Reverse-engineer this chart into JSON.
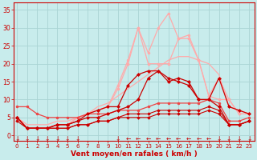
{
  "xlabel": "Vent moyen/en rafales ( km/h )",
  "background_color": "#c8ecec",
  "grid_color": "#aad4d4",
  "x": [
    0,
    1,
    2,
    3,
    4,
    5,
    6,
    7,
    8,
    9,
    10,
    11,
    12,
    13,
    14,
    15,
    16,
    17,
    18,
    19,
    20,
    21,
    22,
    23
  ],
  "ylim": [
    -1.5,
    37
  ],
  "xlim": [
    -0.3,
    23.5
  ],
  "yticks": [
    0,
    5,
    10,
    15,
    20,
    25,
    30,
    35
  ],
  "lines": [
    {
      "y": [
        4,
        2,
        2,
        2,
        2,
        2,
        3,
        3,
        4,
        4,
        5,
        5,
        5,
        5,
        6,
        6,
        6,
        6,
        6,
        7,
        6,
        3,
        3,
        4
      ],
      "color": "#cc0000",
      "lw": 0.8,
      "marker": "D",
      "ms": 1.8,
      "zorder": 6
    },
    {
      "y": [
        5,
        2,
        2,
        2,
        2,
        2,
        3,
        3,
        4,
        4,
        5,
        6,
        6,
        6,
        7,
        7,
        7,
        7,
        7,
        8,
        7,
        3,
        3,
        4
      ],
      "color": "#cc0000",
      "lw": 0.8,
      "marker": "D",
      "ms": 1.8,
      "zorder": 5
    },
    {
      "y": [
        8,
        8,
        6,
        5,
        5,
        5,
        5,
        6,
        6,
        6,
        7,
        7,
        7,
        8,
        9,
        9,
        9,
        9,
        9,
        10,
        9,
        4,
        4,
        5
      ],
      "color": "#ee4444",
      "lw": 0.9,
      "marker": "o",
      "ms": 2.0,
      "zorder": 4
    },
    {
      "y": [
        5,
        2,
        2,
        2,
        3,
        3,
        4,
        5,
        5,
        6,
        7,
        8,
        10,
        16,
        18,
        16,
        15,
        14,
        10,
        10,
        8,
        3,
        3,
        4
      ],
      "color": "#cc0000",
      "lw": 0.9,
      "marker": "D",
      "ms": 2.0,
      "zorder": 5
    },
    {
      "y": [
        5,
        2,
        2,
        2,
        3,
        3,
        4,
        6,
        7,
        8,
        8,
        14,
        17,
        18,
        18,
        15,
        16,
        15,
        10,
        10,
        16,
        8,
        7,
        6
      ],
      "color": "#cc0000",
      "lw": 0.9,
      "marker": "D",
      "ms": 2.0,
      "zorder": 5
    },
    {
      "y": [
        5,
        3,
        3,
        3,
        4,
        4,
        5,
        6,
        8,
        9,
        11,
        13,
        15,
        17,
        19,
        21,
        22,
        22,
        21,
        20,
        17,
        8,
        7,
        6
      ],
      "color": "#ffaaaa",
      "lw": 0.9,
      "marker": null,
      "ms": 0,
      "zorder": 2
    },
    {
      "y": [
        5,
        2,
        2,
        2,
        3,
        3,
        5,
        6,
        7,
        8,
        13,
        20,
        30,
        20,
        20,
        20,
        27,
        27,
        21,
        11,
        16,
        10,
        6,
        6
      ],
      "color": "#ffaaaa",
      "lw": 0.9,
      "marker": "o",
      "ms": 2.2,
      "zorder": 3
    },
    {
      "y": [
        5,
        2,
        2,
        2,
        3,
        3,
        5,
        6,
        7,
        8,
        14,
        21,
        30,
        23,
        30,
        34,
        27,
        28,
        21,
        11,
        10,
        10,
        6,
        6
      ],
      "color": "#ffaaaa",
      "lw": 0.9,
      "marker": "o",
      "ms": 2.0,
      "zorder": 3
    }
  ],
  "arrow_xs_down": [
    0,
    1,
    2,
    3,
    4,
    5,
    6,
    10,
    20,
    21,
    22,
    23
  ],
  "arrow_xs_left": [
    11,
    12,
    13,
    14,
    15,
    16,
    17,
    18,
    19
  ],
  "label_color": "#cc0000",
  "tick_fontsize": 5.0,
  "xlabel_fontsize": 6.5,
  "arrow_fontsize": 5.5
}
